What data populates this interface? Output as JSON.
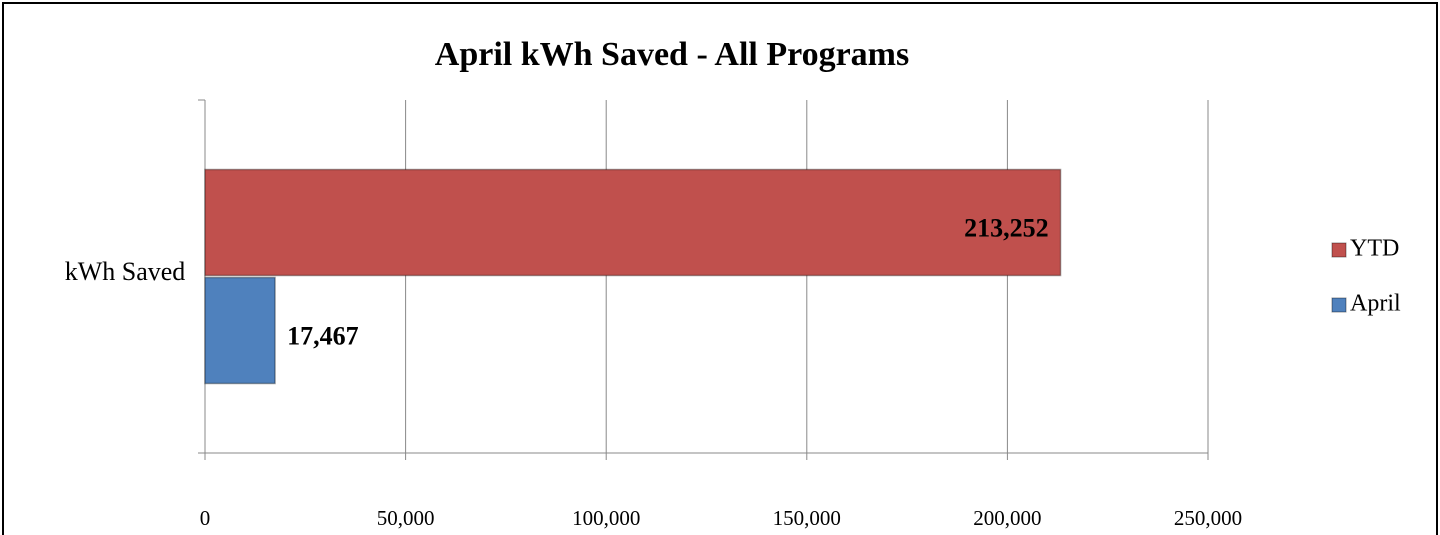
{
  "chart_data": {
    "type": "bar",
    "orientation": "horizontal",
    "title": "April kWh Saved - All Programs",
    "categories": [
      "kWh Saved"
    ],
    "series": [
      {
        "name": "April",
        "color": "#4f81bd",
        "values": [
          17467
        ],
        "value_labels": [
          "17,467"
        ]
      },
      {
        "name": "YTD",
        "color": "#c0504d",
        "values": [
          213252
        ],
        "value_labels": [
          "213,252"
        ]
      }
    ],
    "xlim": [
      0,
      250000
    ],
    "xticks": [
      0,
      {
        "value": 50000,
        "label": "50,000"
      },
      {
        "value": 100000,
        "label": "100,000"
      },
      {
        "value": 150000,
        "label": "150,000"
      },
      {
        "value": 200000,
        "label": "200,000"
      },
      {
        "value": 250000,
        "label": "250,000"
      }
    ],
    "grid": true,
    "legend": "right"
  }
}
